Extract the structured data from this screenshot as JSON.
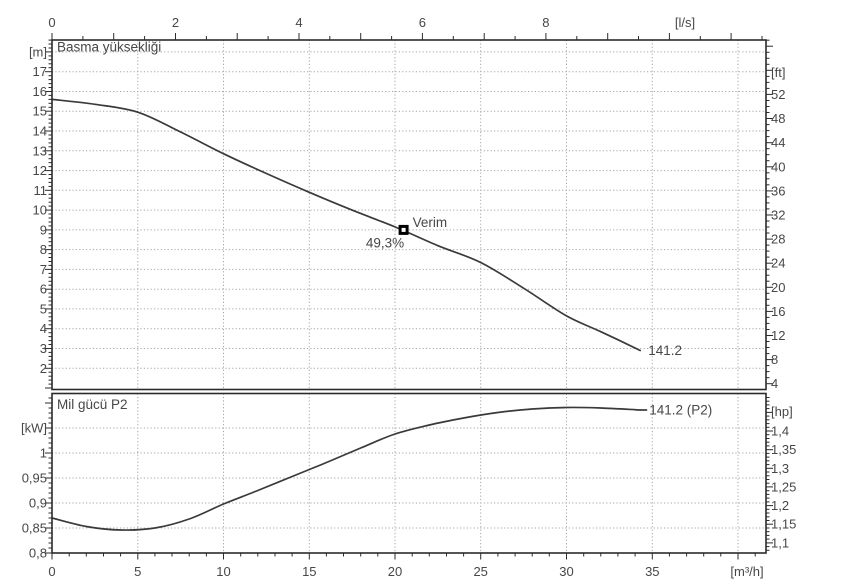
{
  "styles": {
    "background": "#ffffff",
    "axis_color": "#2b2b2b",
    "text_color": "#474747",
    "grid_color": "#a6a6a6",
    "curve_color": "#3a3a3a",
    "marker_fill": "#000000",
    "marker_hole": "#ffffff"
  },
  "chart_data": [
    {
      "type": "line",
      "id": "head-chart",
      "title": "Basma yüksekliği",
      "x_top_axis": {
        "unit": "[l/s]",
        "tick_labels": [
          {
            "value": 0,
            "label": "0"
          },
          {
            "value": 2,
            "label": "2"
          },
          {
            "value": 4,
            "label": "4"
          },
          {
            "value": 6,
            "label": "6"
          },
          {
            "value": 8,
            "label": "8"
          }
        ]
      },
      "y_left_axis": {
        "unit": "[m]",
        "range": [
          0.9,
          18.6
        ],
        "tick_labels": [
          {
            "value": 17,
            "label": "17"
          },
          {
            "value": 16,
            "label": "16"
          },
          {
            "value": 15,
            "label": "15"
          },
          {
            "value": 14,
            "label": "14"
          },
          {
            "value": 13,
            "label": "13"
          },
          {
            "value": 12,
            "label": "12"
          },
          {
            "value": 11,
            "label": "11"
          },
          {
            "value": 10,
            "label": "10"
          },
          {
            "value": 9,
            "label": "9"
          },
          {
            "value": 8,
            "label": "8"
          },
          {
            "value": 7,
            "label": "7"
          },
          {
            "value": 6,
            "label": "6"
          },
          {
            "value": 5,
            "label": "5"
          },
          {
            "value": 4,
            "label": "4"
          },
          {
            "value": 3,
            "label": "3"
          },
          {
            "value": 2,
            "label": "2"
          }
        ]
      },
      "y_right_axis": {
        "unit": "[ft]",
        "tick_labels": [
          {
            "value": 52,
            "label": "52"
          },
          {
            "value": 48,
            "label": "48"
          },
          {
            "value": 44,
            "label": "44"
          },
          {
            "value": 40,
            "label": "40"
          },
          {
            "value": 36,
            "label": "36"
          },
          {
            "value": 32,
            "label": "32"
          },
          {
            "value": 28,
            "label": "28"
          },
          {
            "value": 24,
            "label": "24"
          },
          {
            "value": 20,
            "label": "20"
          },
          {
            "value": 16,
            "label": "16"
          },
          {
            "value": 12,
            "label": "12"
          },
          {
            "value": 8,
            "label": "8"
          },
          {
            "value": 4,
            "label": "4"
          }
        ]
      },
      "grid": true,
      "series": [
        {
          "name": "141.2",
          "end_label": "141.2",
          "x_unit": "m³/h",
          "y_unit": "m",
          "points": [
            [
              0,
              15.6
            ],
            [
              2.5,
              15.35
            ],
            [
              5,
              14.95
            ],
            [
              7.5,
              13.95
            ],
            [
              10,
              12.85
            ],
            [
              12.5,
              11.85
            ],
            [
              15,
              10.9
            ],
            [
              17.5,
              10.0
            ],
            [
              20,
              9.15
            ],
            [
              22.5,
              8.2
            ],
            [
              25,
              7.35
            ],
            [
              27.5,
              6.05
            ],
            [
              30,
              4.65
            ],
            [
              32,
              3.85
            ],
            [
              34.3,
              2.9
            ]
          ]
        }
      ],
      "duty_point": {
        "flow_m3h": 20.5,
        "head_m": 9.0,
        "label": "Verim",
        "efficiency": "49,3%"
      }
    },
    {
      "type": "line",
      "id": "power-chart",
      "title": "Mil gücü P2",
      "x_bottom_axis": {
        "unit": "[m³/h]",
        "tick_labels": [
          {
            "value": 0,
            "label": "0"
          },
          {
            "value": 5,
            "label": "5"
          },
          {
            "value": 10,
            "label": "10"
          },
          {
            "value": 15,
            "label": "15"
          },
          {
            "value": 20,
            "label": "20"
          },
          {
            "value": 25,
            "label": "25"
          },
          {
            "value": 30,
            "label": "30"
          },
          {
            "value": 35,
            "label": "35"
          }
        ]
      },
      "y_left_axis": {
        "unit": "[kW]",
        "range": [
          0.8,
          1.12
        ],
        "tick_labels": [
          {
            "value": 1,
            "label": "1"
          },
          {
            "value": 0.95,
            "label": "0,95"
          },
          {
            "value": 0.9,
            "label": "0,9"
          },
          {
            "value": 0.85,
            "label": "0,85"
          },
          {
            "value": 0.8,
            "label": "0,8"
          }
        ]
      },
      "y_right_axis": {
        "unit": "[hp]",
        "tick_labels": [
          {
            "value": 1.4,
            "label": "1,4"
          },
          {
            "value": 1.35,
            "label": "1,35"
          },
          {
            "value": 1.3,
            "label": "1,3"
          },
          {
            "value": 1.25,
            "label": "1,25"
          },
          {
            "value": 1.2,
            "label": "1,2"
          },
          {
            "value": 1.15,
            "label": "1,15"
          },
          {
            "value": 1.1,
            "label": "1,1"
          }
        ]
      },
      "grid": true,
      "series": [
        {
          "name": "141.2 (P2)",
          "end_label": "141.2 (P2)",
          "x_unit": "m³/h",
          "y_unit": "kW",
          "points": [
            [
              0,
              0.87
            ],
            [
              2,
              0.853
            ],
            [
              4,
              0.846
            ],
            [
              6,
              0.85
            ],
            [
              8,
              0.868
            ],
            [
              10,
              0.898
            ],
            [
              12,
              0.925
            ],
            [
              14,
              0.953
            ],
            [
              16,
              0.981
            ],
            [
              18,
              1.01
            ],
            [
              20,
              1.038
            ],
            [
              22,
              1.056
            ],
            [
              24,
              1.07
            ],
            [
              26,
              1.081
            ],
            [
              28,
              1.088
            ],
            [
              30,
              1.091
            ],
            [
              32,
              1.09
            ],
            [
              34.3,
              1.086
            ]
          ]
        }
      ]
    }
  ]
}
